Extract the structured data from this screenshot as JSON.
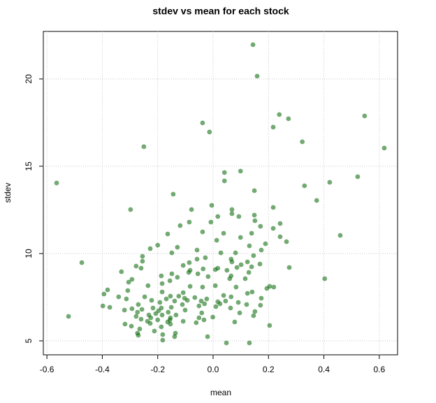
{
  "chart_data": {
    "type": "scatter",
    "title": "stdev vs mean for each stock",
    "x_label": "mean",
    "y_label": "stdev",
    "color": "#006400",
    "grid": true,
    "xlim": [
      -0.613,
      0.666
    ],
    "ylim": [
      4.2,
      22.72
    ],
    "xticks": [
      -0.6,
      -0.4,
      -0.2,
      {
        "value": 0,
        "label": "0.0"
      },
      0.2,
      0.4,
      0.6
    ],
    "yticks": [
      5,
      10,
      15,
      20
    ],
    "x": [
      -0.565,
      -0.474,
      -0.522,
      0.144,
      0.159,
      0.239,
      0.272,
      0.217,
      0.547,
      0.618,
      0.322,
      -0.038,
      -0.013,
      -0.25,
      0.041,
      0.099,
      0.041,
      0.33,
      0.421,
      0.522,
      0.374,
      0.149,
      -0.144,
      -0.298,
      0.217,
      -0.005,
      0.068,
      -0.078,
      0.068,
      0.149,
      0.093,
      0.017,
      0.151,
      0.242,
      -0.086,
      -0.008,
      -0.119,
      0.171,
      0.217,
      -0.038,
      0.038,
      0.139,
      -0.164,
      0.459,
      0.099,
      0.242,
      0.013,
      0.265,
      0.189,
      -0.2,
      0.131,
      -0.129,
      -0.227,
      0.174,
      -0.058,
      0.028,
      0.081,
      -0.149,
      0.146,
      -0.255,
      -0.028,
      -0.058,
      0.065,
      -0.255,
      0.068,
      0.124,
      0.169,
      -0.086,
      0.101,
      -0.108,
      -0.278,
      0.139,
      0.086,
      0.275,
      -0.26,
      -0.036,
      0.017,
      0.008,
      0.05,
      -0.083,
      -0.331,
      -0.088,
      -0.149,
      0.129,
      -0.055,
      -0.187,
      -0.018,
      0.065,
      -0.129,
      0.06,
      0.403,
      -0.293,
      0.116,
      -0.156,
      -0.305,
      -0.184,
      0.204,
      0.008,
      0.194,
      -0.235,
      0.219,
      -0.083,
      -0.038,
      0.083,
      -0.381,
      -0.308,
      -0.184,
      0.141,
      -0.108,
      -0.394,
      0.124,
      -0.247,
      -0.154,
      0.038,
      -0.341,
      -0.124,
      -0.066,
      0.065,
      -0.103,
      -0.313,
      -0.169,
      -0.023,
      0.174,
      -0.222,
      -0.139,
      -0.043,
      -0.093,
      0.017,
      0.045,
      0.091,
      -0.192,
      -0.27,
      -0.111,
      -0.031,
      0.025,
      0.171,
      -0.398,
      0.121,
      -0.051,
      -0.373,
      -0.217,
      -0.187,
      0.01,
      -0.151,
      -0.257,
      -0.293,
      -0.101,
      0.063,
      -0.197,
      -0.32,
      -0.273,
      0.151,
      -0.162,
      -0.207,
      -0.041,
      0.096,
      -0.232,
      -0.184,
      -0.134,
      0.146,
      -0.278,
      -0.001,
      -0.225,
      -0.154,
      -0.051,
      -0.26,
      -0.156,
      -0.2,
      -0.033,
      -0.237,
      -0.164,
      -0.061,
      -0.318,
      -0.108,
      0.078,
      -0.154,
      -0.227,
      0.204,
      -0.295,
      -0.187,
      -0.265,
      -0.212,
      -0.273,
      -0.136,
      -0.182,
      -0.27,
      -0.139,
      -0.02,
      -0.182,
      0.048,
      0.131
    ],
    "values": [
      14.04,
      9.48,
      6.4,
      21.96,
      20.16,
      17.96,
      17.72,
      17.24,
      17.88,
      16.04,
      16.4,
      17.48,
      16.96,
      16.12,
      14.64,
      14.72,
      14.16,
      13.88,
      14.08,
      14.4,
      13.04,
      13.6,
      13.4,
      12.52,
      12.64,
      12.76,
      12.52,
      12.52,
      12.28,
      12.2,
      12.12,
      12.12,
      11.88,
      11.72,
      11.8,
      11.8,
      11.6,
      11.56,
      11.44,
      11.24,
      11.16,
      11.16,
      11.12,
      11.04,
      10.92,
      10.96,
      10.76,
      10.68,
      10.56,
      10.48,
      10.44,
      10.36,
      10.28,
      10.2,
      10.2,
      10.04,
      10.04,
      10.04,
      9.88,
      9.84,
      9.76,
      9.68,
      9.68,
      9.56,
      9.52,
      9.52,
      9.4,
      9.48,
      9.36,
      9.32,
      9.28,
      9.24,
      9.2,
      9.2,
      9.16,
      9.12,
      9.16,
      9.08,
      9.04,
      9.04,
      8.96,
      8.92,
      8.84,
      8.92,
      8.84,
      8.72,
      8.68,
      8.72,
      8.64,
      8.56,
      8.56,
      8.52,
      8.56,
      8.44,
      8.36,
      8.28,
      8.12,
      8.16,
      8.0,
      8.16,
      8.08,
      8.12,
      8.08,
      8.08,
      7.92,
      7.88,
      7.8,
      7.8,
      7.76,
      7.68,
      7.72,
      7.52,
      7.56,
      7.6,
      7.52,
      7.56,
      7.48,
      7.52,
      7.44,
      7.4,
      7.4,
      7.4,
      7.44,
      7.32,
      7.28,
      7.28,
      7.32,
      7.24,
      7.28,
      7.2,
      7.2,
      7.08,
      7.08,
      7.12,
      7.12,
      7.04,
      7.0,
      7.08,
      7.0,
      6.92,
      6.88,
      6.88,
      6.96,
      6.92,
      6.8,
      6.84,
      6.76,
      6.88,
      6.72,
      6.76,
      6.64,
      6.68,
      6.64,
      6.56,
      6.6,
      6.6,
      6.48,
      6.48,
      6.48,
      6.44,
      6.4,
      6.36,
      6.32,
      6.32,
      6.32,
      6.24,
      6.2,
      6.2,
      6.2,
      6.12,
      6.08,
      6.04,
      5.96,
      6.12,
      6.08,
      5.96,
      6.0,
      5.88,
      5.84,
      5.8,
      5.68,
      5.56,
      5.44,
      5.44,
      5.36,
      5.32,
      5.24,
      5.24,
      5.04,
      4.88,
      4.88
    ]
  }
}
